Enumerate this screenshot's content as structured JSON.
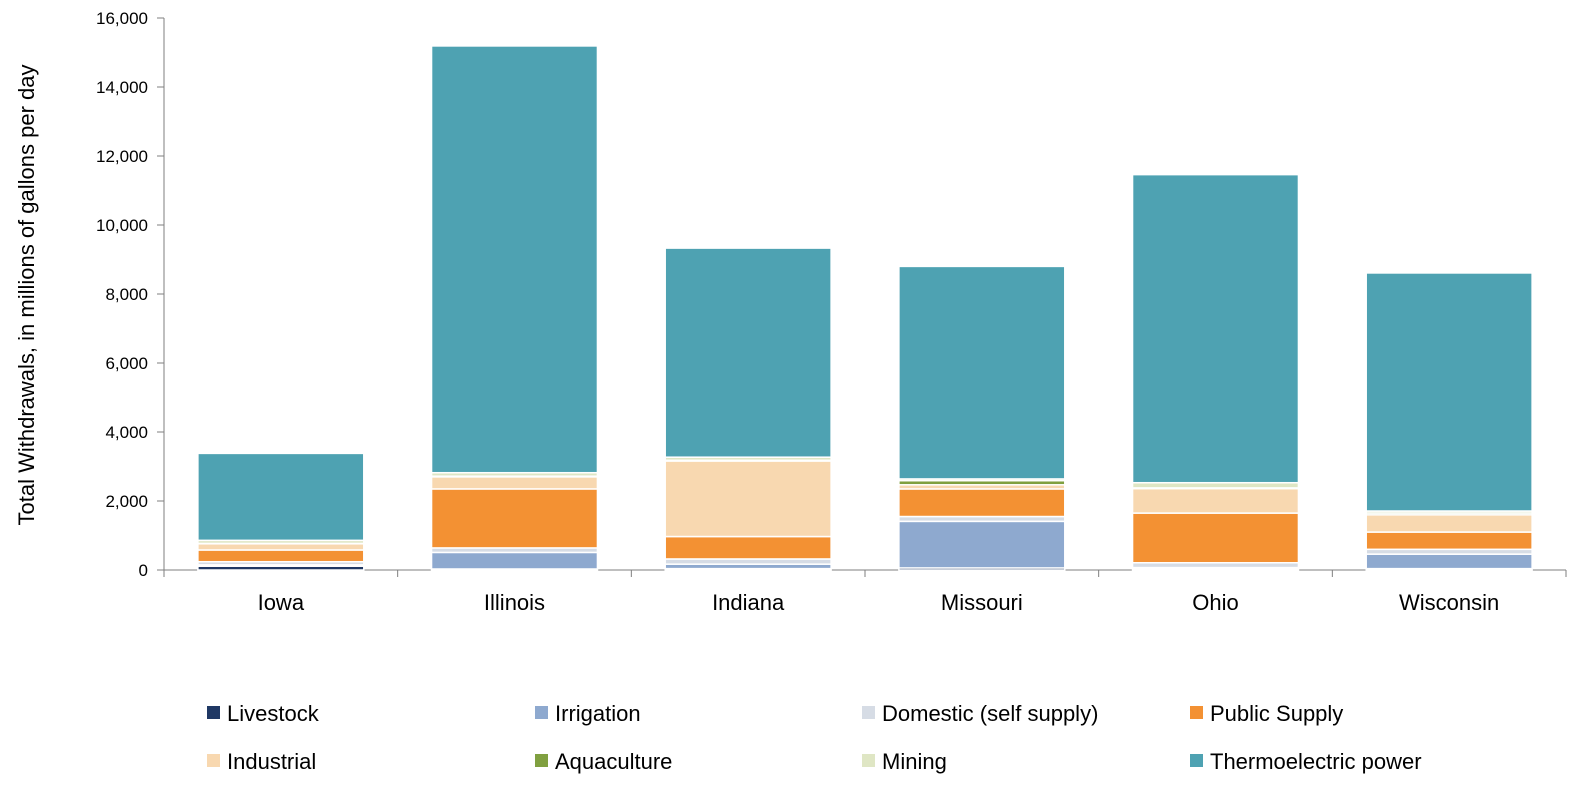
{
  "chart_data": {
    "type": "bar",
    "stacked": true,
    "ylabel": "Total Withdrawals, in millions of gallons per day",
    "xlabel": "",
    "ylim": [
      0,
      16000
    ],
    "yticks": [
      0,
      2000,
      4000,
      6000,
      8000,
      10000,
      12000,
      14000,
      16000
    ],
    "ytick_labels": [
      "0",
      "2,000",
      "4,000",
      "6,000",
      "8,000",
      "10,000",
      "12,000",
      "14,000",
      "16,000"
    ],
    "grid": false,
    "legend_position": "bottom",
    "categories": [
      "Iowa",
      "Illinois",
      "Indiana",
      "Missouri",
      "Ohio",
      "Wisconsin"
    ],
    "series": [
      {
        "name": "Livestock",
        "color": "#1f3864",
        "values": [
          110,
          30,
          40,
          60,
          40,
          40
        ]
      },
      {
        "name": "Irrigation",
        "color": "#8ea9cf",
        "values": [
          40,
          480,
          130,
          1350,
          30,
          420
        ]
      },
      {
        "name": "Domestic (self supply)",
        "color": "#d6dce5",
        "values": [
          90,
          130,
          150,
          140,
          140,
          140
        ]
      },
      {
        "name": "Public Supply",
        "color": "#f39133",
        "values": [
          340,
          1710,
          650,
          800,
          1440,
          500
        ]
      },
      {
        "name": "Industrial",
        "color": "#f8d8b0",
        "values": [
          180,
          350,
          2190,
          120,
          710,
          500
        ]
      },
      {
        "name": "Aquaculture",
        "color": "#80a040",
        "values": [
          10,
          20,
          20,
          120,
          20,
          50
        ]
      },
      {
        "name": "Mining",
        "color": "#dfe6c4",
        "values": [
          90,
          100,
          90,
          50,
          150,
          60
        ]
      },
      {
        "name": "Thermoelectric power",
        "color": "#4ea2b2",
        "values": [
          2520,
          12370,
          6060,
          6160,
          8930,
          6900
        ]
      }
    ]
  }
}
